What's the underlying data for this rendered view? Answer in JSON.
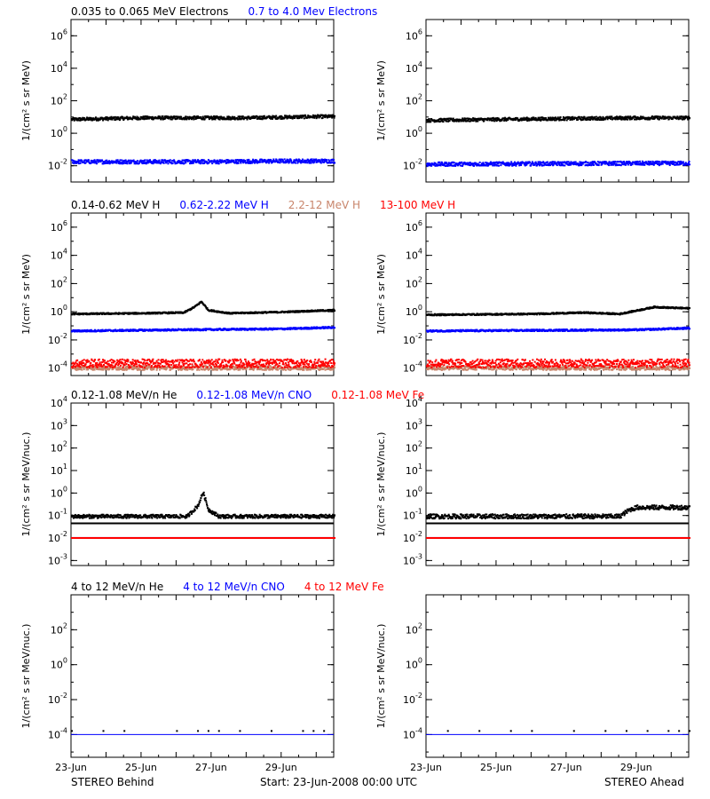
{
  "footer": {
    "left": "STEREO Behind",
    "center": "Start: 23-Jun-2008 00:00 UTC",
    "right": "STEREO Ahead"
  },
  "chart_data": [
    {
      "type": "scatter",
      "row": 0,
      "side": "left",
      "ylabel": "1/(cm² s sr MeV)",
      "yscale": "log",
      "ylim": [
        0.001,
        10000000
      ],
      "yticks": [
        {
          "exp": -2
        },
        {
          "exp": 0
        },
        {
          "exp": 2
        },
        {
          "exp": 4
        },
        {
          "exp": 6
        }
      ],
      "titles": [
        {
          "text": "0.035 to 0.065 MeV Electrons",
          "color": "#000000"
        },
        {
          "text": "0.7 to 4.0 Mev Electrons",
          "color": "#0000ff"
        }
      ],
      "xlim": [
        0,
        7.5
      ],
      "xticks": [
        "23-Jun",
        "25-Jun",
        "27-Jun",
        "29-Jun"
      ],
      "series": [
        {
          "color": "#000000",
          "values": [
            [
              0,
              8
            ],
            [
              1,
              9
            ],
            [
              2,
              10
            ],
            [
              3,
              10
            ],
            [
              4,
              10
            ],
            [
              5,
              10
            ],
            [
              6,
              11
            ],
            [
              7,
              12
            ],
            [
              7.5,
              12
            ]
          ],
          "scatter": 0.1
        },
        {
          "color": "#0000ff",
          "values": [
            [
              0,
              0.02
            ],
            [
              2,
              0.02
            ],
            [
              4,
              0.02
            ],
            [
              6,
              0.022
            ],
            [
              7.5,
              0.022
            ]
          ],
          "scatter": 0.12
        }
      ]
    },
    {
      "type": "scatter",
      "row": 0,
      "side": "right",
      "ylabel": "1/(cm² s sr MeV)",
      "yscale": "log",
      "ylim": [
        0.001,
        10000000
      ],
      "yticks": [
        {
          "exp": -2
        },
        {
          "exp": 0
        },
        {
          "exp": 2
        },
        {
          "exp": 4
        },
        {
          "exp": 6
        }
      ],
      "titles": [],
      "xlim": [
        0,
        7.5
      ],
      "xticks": [
        "23-Jun",
        "25-Jun",
        "27-Jun",
        "29-Jun"
      ],
      "series": [
        {
          "color": "#000000",
          "values": [
            [
              0,
              7
            ],
            [
              2,
              8
            ],
            [
              4,
              9
            ],
            [
              6,
              10
            ],
            [
              7.5,
              10
            ]
          ],
          "scatter": 0.1
        },
        {
          "color": "#0000ff",
          "values": [
            [
              0,
              0.014
            ],
            [
              3,
              0.015
            ],
            [
              6,
              0.016
            ],
            [
              7.5,
              0.016
            ]
          ],
          "scatter": 0.12
        }
      ]
    },
    {
      "type": "scatter",
      "row": 1,
      "side": "left",
      "ylabel": "1/(cm² s sr MeV)",
      "yscale": "log",
      "ylim": [
        3e-05,
        10000000
      ],
      "yticks": [
        {
          "exp": -4
        },
        {
          "exp": -2
        },
        {
          "exp": 0
        },
        {
          "exp": 2
        },
        {
          "exp": 4
        },
        {
          "exp": 6
        }
      ],
      "titles": [
        {
          "text": "0.14-0.62 MeV H",
          "color": "#000000"
        },
        {
          "text": "0.62-2.22 MeV H",
          "color": "#0000ff"
        },
        {
          "text": "2.2-12 MeV H",
          "color": "#c8846a"
        },
        {
          "text": "13-100 MeV H",
          "color": "#ff0000"
        }
      ],
      "xlim": [
        0,
        7.5
      ],
      "xticks": [
        "23-Jun",
        "25-Jun",
        "27-Jun",
        "29-Jun"
      ],
      "series": [
        {
          "color": "#000000",
          "values": [
            [
              0,
              0.8
            ],
            [
              2,
              0.9
            ],
            [
              3.2,
              1.0
            ],
            [
              3.5,
              2.5
            ],
            [
              3.7,
              6
            ],
            [
              3.9,
              1.5
            ],
            [
              4.5,
              0.9
            ],
            [
              6,
              1.1
            ],
            [
              7.5,
              1.5
            ]
          ],
          "scatter": 0.05
        },
        {
          "color": "#0000ff",
          "values": [
            [
              0,
              0.05
            ],
            [
              3,
              0.06
            ],
            [
              6,
              0.07
            ],
            [
              7.5,
              0.09
            ]
          ],
          "scatter": 0.06
        },
        {
          "color": "#c8846a",
          "values": [
            [
              0,
              0.00012
            ],
            [
              7.5,
              0.00012
            ]
          ],
          "scatter": 0.15
        },
        {
          "color": "#ff0000",
          "values": [
            [
              0,
              0.00025
            ],
            [
              7.5,
              0.00025
            ]
          ],
          "scatter": 0.3
        }
      ]
    },
    {
      "type": "scatter",
      "row": 1,
      "side": "right",
      "ylabel": "1/(cm² s sr MeV)",
      "yscale": "log",
      "ylim": [
        3e-05,
        10000000
      ],
      "yticks": [
        {
          "exp": -4
        },
        {
          "exp": -2
        },
        {
          "exp": 0
        },
        {
          "exp": 2
        },
        {
          "exp": 4
        },
        {
          "exp": 6
        }
      ],
      "titles": [],
      "xlim": [
        0,
        7.5
      ],
      "xticks": [
        "23-Jun",
        "25-Jun",
        "27-Jun",
        "29-Jun"
      ],
      "series": [
        {
          "color": "#000000",
          "values": [
            [
              0,
              0.7
            ],
            [
              3,
              0.8
            ],
            [
              4.5,
              1.0
            ],
            [
              5.5,
              0.8
            ],
            [
              6.5,
              2.5
            ],
            [
              7,
              2.2
            ],
            [
              7.5,
              2.0
            ]
          ],
          "scatter": 0.05
        },
        {
          "color": "#0000ff",
          "values": [
            [
              0,
              0.05
            ],
            [
              3,
              0.055
            ],
            [
              6,
              0.06
            ],
            [
              7.5,
              0.08
            ]
          ],
          "scatter": 0.06
        },
        {
          "color": "#c8846a",
          "values": [
            [
              0,
              0.00012
            ],
            [
              7.5,
              0.00012
            ]
          ],
          "scatter": 0.15
        },
        {
          "color": "#ff0000",
          "values": [
            [
              0,
              0.00025
            ],
            [
              7.5,
              0.00025
            ]
          ],
          "scatter": 0.3
        }
      ]
    },
    {
      "type": "scatter",
      "row": 2,
      "side": "left",
      "ylabel": "1/(cm² s sr MeV/nuc.)",
      "yscale": "log",
      "ylim": [
        0.0006,
        10000
      ],
      "yticks": [
        {
          "exp": -3
        },
        {
          "exp": -2
        },
        {
          "exp": -1
        },
        {
          "exp": 0
        },
        {
          "exp": 1
        },
        {
          "exp": 2
        },
        {
          "exp": 3
        },
        {
          "exp": 4
        }
      ],
      "titles": [
        {
          "text": "0.12-1.08 MeV/n He",
          "color": "#000000"
        },
        {
          "text": "0.12-1.08 MeV/n CNO",
          "color": "#0000ff"
        },
        {
          "text": "0.12-1.08 MeV Fe",
          "color": "#ff0000"
        }
      ],
      "xlim": [
        0,
        7.5
      ],
      "xticks": [
        "23-Jun",
        "25-Jun",
        "27-Jun",
        "29-Jun"
      ],
      "series": [
        {
          "color": "#000000",
          "values": [
            [
              0,
              0.1
            ],
            [
              3.3,
              0.1
            ],
            [
              3.6,
              0.3
            ],
            [
              3.75,
              1.2
            ],
            [
              3.9,
              0.2
            ],
            [
              4.2,
              0.1
            ],
            [
              7.5,
              0.1
            ]
          ],
          "scatter": 0.08
        },
        {
          "color": "#000000",
          "values": [
            [
              0,
              0.045
            ],
            [
              7.5,
              0.045
            ]
          ],
          "line": true
        },
        {
          "color": "#0000ff",
          "values": [
            [
              0,
              0.011
            ],
            [
              7.5,
              0.011
            ]
          ],
          "scatter": 0.0
        },
        {
          "color": "#ff0000",
          "values": [
            [
              0,
              0.011
            ],
            [
              7.5,
              0.011
            ]
          ],
          "scatter": 0.0
        }
      ]
    },
    {
      "type": "scatter",
      "row": 2,
      "side": "right",
      "ylabel": "1/(cm² s sr MeV/nuc.)",
      "yscale": "log",
      "ylim": [
        0.0006,
        10000
      ],
      "yticks": [
        {
          "exp": -3
        },
        {
          "exp": -2
        },
        {
          "exp": -1
        },
        {
          "exp": 0
        },
        {
          "exp": 1
        },
        {
          "exp": 2
        },
        {
          "exp": 3
        },
        {
          "exp": 4
        }
      ],
      "titles": [],
      "xlim": [
        0,
        7.5
      ],
      "xticks": [
        "23-Jun",
        "25-Jun",
        "27-Jun",
        "29-Jun"
      ],
      "series": [
        {
          "color": "#000000",
          "values": [
            [
              0,
              0.1
            ],
            [
              5.5,
              0.1
            ],
            [
              5.8,
              0.2
            ],
            [
              6,
              0.25
            ],
            [
              7.5,
              0.25
            ]
          ],
          "scatter": 0.1
        },
        {
          "color": "#000000",
          "values": [
            [
              0,
              0.045
            ],
            [
              7.5,
              0.045
            ]
          ],
          "line": true
        },
        {
          "color": "#0000ff",
          "values": [
            [
              0,
              0.011
            ],
            [
              7.5,
              0.011
            ]
          ],
          "scatter": 0.0
        },
        {
          "color": "#ff0000",
          "values": [
            [
              0,
              0.011
            ],
            [
              7.5,
              0.011
            ]
          ],
          "scatter": 0.0
        }
      ]
    },
    {
      "type": "scatter",
      "row": 3,
      "side": "left",
      "ylabel": "1/(cm² s sr MeV/nuc.)",
      "yscale": "log",
      "ylim": [
        5e-06,
        10000
      ],
      "yticks": [
        {
          "exp": -4
        },
        {
          "exp": -2
        },
        {
          "exp": 0
        },
        {
          "exp": 2
        }
      ],
      "titles": [
        {
          "text": "4 to 12 MeV/n He",
          "color": "#000000"
        },
        {
          "text": "4 to 12 MeV/n CNO",
          "color": "#0000ff"
        },
        {
          "text": "4 to 12 MeV Fe",
          "color": "#ff0000"
        }
      ],
      "xlim": [
        0,
        7.5
      ],
      "xticks": [
        "23-Jun",
        "25-Jun",
        "27-Jun",
        "29-Jun"
      ],
      "series": [
        {
          "color": "#000000",
          "values": [
            [
              0,
              0.00018
            ],
            [
              7.5,
              0.00018
            ]
          ],
          "sparse": true
        },
        {
          "color": "#0000ff",
          "values": [
            [
              0,
              0.0001
            ],
            [
              7.5,
              0.0001
            ]
          ],
          "line": true
        }
      ]
    },
    {
      "type": "scatter",
      "row": 3,
      "side": "right",
      "ylabel": "1/(cm² s sr MeV/nuc.)",
      "yscale": "log",
      "ylim": [
        5e-06,
        10000
      ],
      "yticks": [
        {
          "exp": -4
        },
        {
          "exp": -2
        },
        {
          "exp": 0
        },
        {
          "exp": 2
        }
      ],
      "titles": [],
      "xlim": [
        0,
        7.5
      ],
      "xticks": [
        "23-Jun",
        "25-Jun",
        "27-Jun",
        "29-Jun"
      ],
      "series": [
        {
          "color": "#000000",
          "values": [
            [
              0,
              0.00018
            ],
            [
              7.5,
              0.00018
            ]
          ],
          "sparse": true
        },
        {
          "color": "#0000ff",
          "values": [
            [
              0,
              0.0001
            ],
            [
              7.5,
              0.0001
            ]
          ],
          "line": true
        }
      ]
    }
  ]
}
